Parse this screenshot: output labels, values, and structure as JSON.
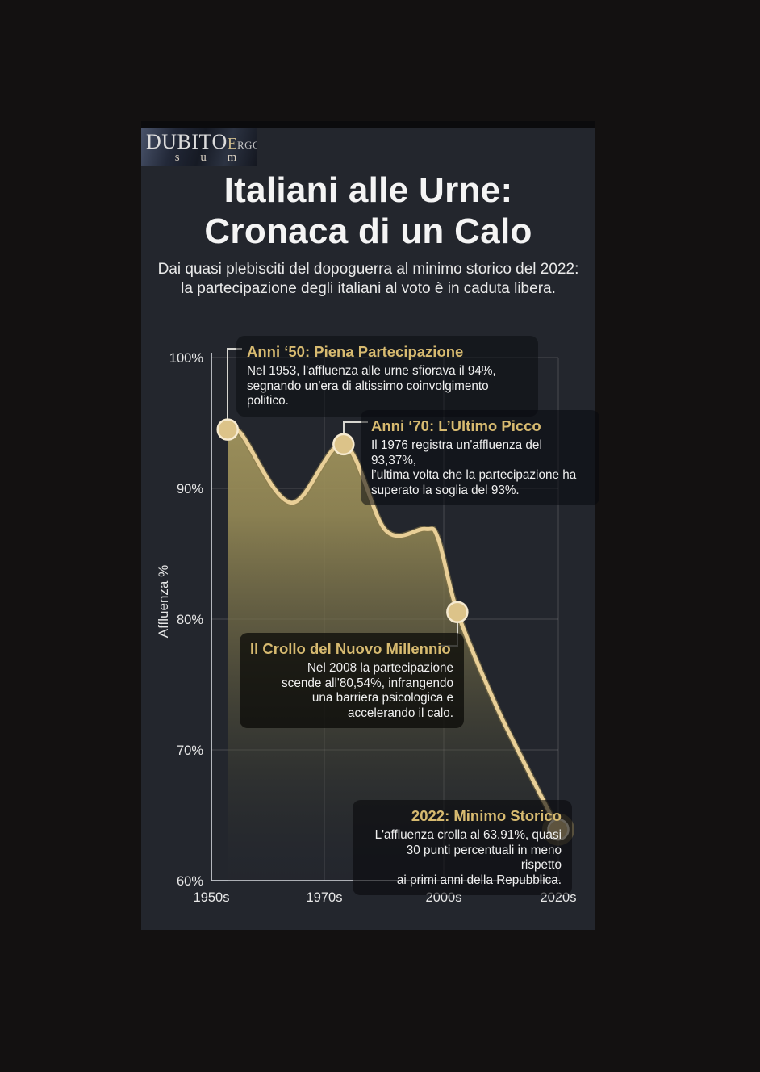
{
  "logo": {
    "word_main": "DUBITO",
    "word_e": "E",
    "word_rest": "RGO",
    "word_bottom": "s u m"
  },
  "header": {
    "title": "Italiani alle Urne:\nCronaca di un Calo",
    "subtitle": "Dai quasi plebisciti del dopoguerra al minimo storico del 2022:\nla partecipazione degli italiani al voto è in caduta libera."
  },
  "annotations": [
    {
      "title": "Anni ‘50: Piena Partecipazione",
      "body": "Nel 1953, l'affluenza alle urne sfiorava il 94%,\nsegnando un'era di altissimo coinvolgimento politico."
    },
    {
      "title": "Anni ‘70: L’Ultimo Picco",
      "body": "Il 1976 registra un'affluenza del 93,37%,\nl’ultima volta che la partecipazione ha\nsuperato la soglia del 93%."
    },
    {
      "title": "Il Crollo del Nuovo Millennio",
      "body": "Nel 2008 la partecipazione\nscende all'80,54%, infrangendo\nuna barriera psicologica e\naccelerando il calo."
    },
    {
      "title": "2022: Minimo Storico",
      "body": "L'affluenza crolla al 63,91%, quasi\n30 punti percentuali in meno rispetto\nai primi anni della Repubblica."
    }
  ],
  "colors": {
    "page_background": "#131111",
    "card_background": "#23262d",
    "accent_gold": "#d7ba70",
    "line_gold": "#e9cf97",
    "area_gold_top": "#ad9e63",
    "marker_fill": "#dcc389",
    "marker_stroke": "#f6ead0",
    "marker_halo": "rgba(173,150,90,0.38)",
    "text_white": "#f4f4f4"
  },
  "chart_data": {
    "type": "area",
    "title": "Italiani alle Urne: Cronaca di un Calo",
    "xlabel": "",
    "ylabel": "Affluenza %",
    "ylim": [
      60,
      100
    ],
    "grid": true,
    "x_ticks": [
      {
        "label": "1950s",
        "t": 0
      },
      {
        "label": "1970s",
        "t": 0.3256
      },
      {
        "label": "2000s",
        "t": 0.6698
      },
      {
        "label": "2020s",
        "t": 1
      }
    ],
    "y_ticks": [
      {
        "label": "100%",
        "value": 100
      },
      {
        "label": "90%",
        "value": 90
      },
      {
        "label": "80%",
        "value": 80
      },
      {
        "label": "70%",
        "value": 70
      },
      {
        "label": "60%",
        "value": 60
      }
    ],
    "series": [
      {
        "name": "Affluenza %",
        "points": [
          {
            "t": 0.047,
            "pct": 94.5,
            "year": 1953,
            "marker": true
          },
          {
            "t": 0.085,
            "pct": 94.2
          },
          {
            "t": 0.23,
            "pct": 88.9
          },
          {
            "t": 0.381,
            "pct": 93.37,
            "year": 1976,
            "marker": true
          },
          {
            "t": 0.502,
            "pct": 86.8
          },
          {
            "t": 0.616,
            "pct": 86.9
          },
          {
            "t": 0.653,
            "pct": 86.2
          },
          {
            "t": 0.709,
            "pct": 80.54,
            "year": 2008,
            "marker": true
          },
          {
            "t": 0.812,
            "pct": 73.9
          },
          {
            "t": 0.879,
            "pct": 70.2
          },
          {
            "t": 1.0,
            "pct": 63.91,
            "year": 2022,
            "marker": true,
            "big": true
          }
        ]
      }
    ],
    "key_values": [
      {
        "year": 1953,
        "value": "~94%"
      },
      {
        "year": 1976,
        "value": "93,37%"
      },
      {
        "year": 2008,
        "value": "80,54%"
      },
      {
        "year": 2022,
        "value": "63,91%"
      }
    ]
  }
}
